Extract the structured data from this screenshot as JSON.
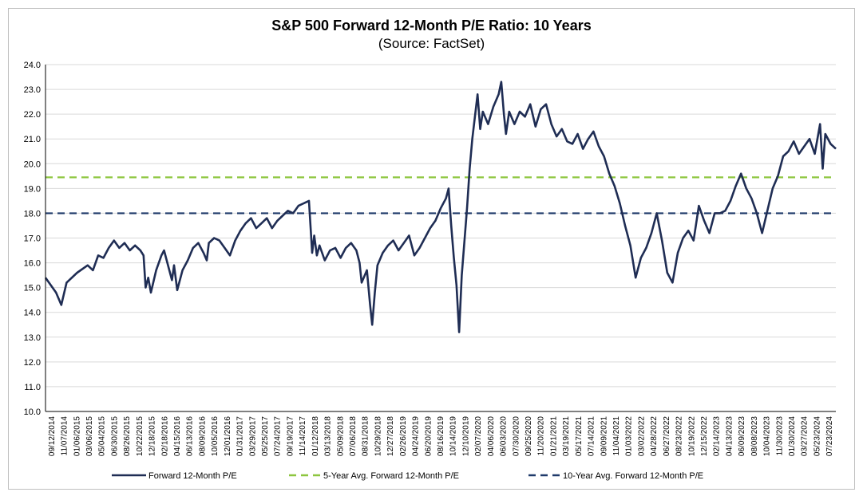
{
  "chart_data": {
    "type": "line",
    "title": "S&P 500 Forward 12-Month P/E Ratio: 10 Years",
    "subtitle": "(Source: FactSet)",
    "xlabel": "",
    "ylabel": "",
    "ylim": [
      10.0,
      24.0
    ],
    "y_ticks": [
      "10.0",
      "11.0",
      "12.0",
      "13.0",
      "14.0",
      "15.0",
      "16.0",
      "17.0",
      "18.0",
      "19.0",
      "20.0",
      "21.0",
      "22.0",
      "23.0",
      "24.0"
    ],
    "x_tick_labels": [
      "09/12/2014",
      "11/07/2014",
      "01/06/2015",
      "03/06/2015",
      "05/04/2015",
      "06/30/2015",
      "08/26/2015",
      "10/22/2015",
      "12/18/2015",
      "02/18/2016",
      "04/15/2016",
      "06/13/2016",
      "08/09/2016",
      "10/05/2016",
      "12/01/2016",
      "01/31/2017",
      "03/29/2017",
      "05/25/2017",
      "07/24/2017",
      "09/19/2017",
      "11/14/2017",
      "01/12/2018",
      "03/13/2018",
      "05/09/2018",
      "07/06/2018",
      "08/31/2018",
      "10/29/2018",
      "12/27/2018",
      "02/26/2019",
      "04/24/2019",
      "06/20/2019",
      "08/16/2019",
      "10/14/2019",
      "12/10/2019",
      "02/07/2020",
      "04/06/2020",
      "06/03/2020",
      "07/30/2020",
      "09/25/2020",
      "11/20/2020",
      "01/21/2021",
      "03/19/2021",
      "05/17/2021",
      "07/14/2021",
      "09/09/2021",
      "11/04/2021",
      "01/03/2022",
      "03/02/2022",
      "04/28/2022",
      "06/27/2022",
      "08/23/2022",
      "10/19/2022",
      "12/15/2022",
      "02/14/2023",
      "04/13/2023",
      "06/09/2023",
      "08/08/2023",
      "10/04/2023",
      "11/30/2023",
      "01/30/2024",
      "03/27/2024",
      "05/23/2024",
      "07/23/2024"
    ],
    "grid": true,
    "legend_position": "bottom",
    "series": [
      {
        "name": "Forward 12-Month P/E",
        "color": "#1f2d54",
        "points": [
          [
            0,
            15.4
          ],
          [
            2,
            14.8
          ],
          [
            3,
            14.3
          ],
          [
            4,
            15.2
          ],
          [
            6,
            15.6
          ],
          [
            8,
            15.9
          ],
          [
            9,
            15.7
          ],
          [
            10,
            16.3
          ],
          [
            11,
            16.2
          ],
          [
            12,
            16.6
          ],
          [
            13,
            16.9
          ],
          [
            14,
            16.6
          ],
          [
            15,
            16.8
          ],
          [
            16,
            16.5
          ],
          [
            17,
            16.7
          ],
          [
            18,
            16.5
          ],
          [
            18.6,
            16.3
          ],
          [
            19,
            15.0
          ],
          [
            19.5,
            15.4
          ],
          [
            20,
            14.8
          ],
          [
            21,
            15.7
          ],
          [
            22,
            16.3
          ],
          [
            22.5,
            16.5
          ],
          [
            23,
            16.1
          ],
          [
            24,
            15.3
          ],
          [
            24.4,
            15.9
          ],
          [
            25,
            14.9
          ],
          [
            26,
            15.7
          ],
          [
            27,
            16.1
          ],
          [
            28,
            16.6
          ],
          [
            29,
            16.8
          ],
          [
            30,
            16.4
          ],
          [
            30.6,
            16.1
          ],
          [
            31,
            16.8
          ],
          [
            32,
            17.0
          ],
          [
            33,
            16.9
          ],
          [
            34,
            16.6
          ],
          [
            35,
            16.3
          ],
          [
            36,
            16.9
          ],
          [
            37,
            17.3
          ],
          [
            38,
            17.6
          ],
          [
            39,
            17.8
          ],
          [
            40,
            17.4
          ],
          [
            41,
            17.6
          ],
          [
            42,
            17.8
          ],
          [
            43,
            17.4
          ],
          [
            44,
            17.7
          ],
          [
            45,
            17.9
          ],
          [
            46,
            18.1
          ],
          [
            47,
            18.0
          ],
          [
            48,
            18.3
          ],
          [
            49,
            18.4
          ],
          [
            50,
            18.5
          ],
          [
            50.6,
            16.4
          ],
          [
            51,
            17.1
          ],
          [
            51.5,
            16.3
          ],
          [
            52,
            16.7
          ],
          [
            53,
            16.1
          ],
          [
            54,
            16.5
          ],
          [
            55,
            16.6
          ],
          [
            56,
            16.2
          ],
          [
            57,
            16.6
          ],
          [
            58,
            16.8
          ],
          [
            59,
            16.5
          ],
          [
            59.6,
            16.0
          ],
          [
            60,
            15.2
          ],
          [
            61,
            15.7
          ],
          [
            61.6,
            14.3
          ],
          [
            62,
            13.5
          ],
          [
            62.5,
            14.8
          ],
          [
            63,
            15.9
          ],
          [
            64,
            16.4
          ],
          [
            65,
            16.7
          ],
          [
            66,
            16.9
          ],
          [
            67,
            16.5
          ],
          [
            68,
            16.8
          ],
          [
            69,
            17.1
          ],
          [
            70,
            16.3
          ],
          [
            71,
            16.6
          ],
          [
            72,
            17.0
          ],
          [
            73,
            17.4
          ],
          [
            74,
            17.7
          ],
          [
            75,
            18.2
          ],
          [
            76,
            18.6
          ],
          [
            76.5,
            19.0
          ],
          [
            77,
            17.5
          ],
          [
            77.5,
            16.2
          ],
          [
            78,
            15.1
          ],
          [
            78.5,
            13.2
          ],
          [
            79,
            15.5
          ],
          [
            80,
            18.2
          ],
          [
            80.5,
            19.8
          ],
          [
            81,
            21.0
          ],
          [
            82,
            22.8
          ],
          [
            82.5,
            21.4
          ],
          [
            83,
            22.1
          ],
          [
            84,
            21.6
          ],
          [
            85,
            22.3
          ],
          [
            86,
            22.8
          ],
          [
            86.5,
            23.3
          ],
          [
            87,
            22.0
          ],
          [
            87.4,
            21.2
          ],
          [
            88,
            22.1
          ],
          [
            89,
            21.6
          ],
          [
            90,
            22.1
          ],
          [
            91,
            21.9
          ],
          [
            92,
            22.4
          ],
          [
            93,
            21.5
          ],
          [
            94,
            22.2
          ],
          [
            95,
            22.4
          ],
          [
            96,
            21.6
          ],
          [
            97,
            21.1
          ],
          [
            98,
            21.4
          ],
          [
            99,
            20.9
          ],
          [
            100,
            20.8
          ],
          [
            101,
            21.2
          ],
          [
            102,
            20.6
          ],
          [
            103,
            21.0
          ],
          [
            104,
            21.3
          ],
          [
            105,
            20.7
          ],
          [
            106,
            20.3
          ],
          [
            107,
            19.6
          ],
          [
            108,
            19.1
          ],
          [
            109,
            18.4
          ],
          [
            110,
            17.5
          ],
          [
            111,
            16.7
          ],
          [
            112,
            15.4
          ],
          [
            113,
            16.2
          ],
          [
            114,
            16.6
          ],
          [
            115,
            17.2
          ],
          [
            116,
            18.0
          ],
          [
            117,
            16.9
          ],
          [
            118,
            15.6
          ],
          [
            119,
            15.2
          ],
          [
            120,
            16.4
          ],
          [
            121,
            17.0
          ],
          [
            122,
            17.3
          ],
          [
            123,
            16.9
          ],
          [
            124,
            18.3
          ],
          [
            125,
            17.7
          ],
          [
            126,
            17.2
          ],
          [
            127,
            18.0
          ],
          [
            128,
            18.0
          ],
          [
            129,
            18.1
          ],
          [
            130,
            18.5
          ],
          [
            131,
            19.1
          ],
          [
            132,
            19.6
          ],
          [
            133,
            19.0
          ],
          [
            134,
            18.6
          ],
          [
            135,
            18.0
          ],
          [
            136,
            17.2
          ],
          [
            137,
            18.1
          ],
          [
            138,
            19.0
          ],
          [
            139,
            19.5
          ],
          [
            140,
            20.3
          ],
          [
            141,
            20.5
          ],
          [
            142,
            20.9
          ],
          [
            143,
            20.4
          ],
          [
            144,
            20.7
          ],
          [
            145,
            21.0
          ],
          [
            146,
            20.4
          ],
          [
            147,
            21.6
          ],
          [
            147.5,
            19.8
          ],
          [
            148,
            21.2
          ],
          [
            149,
            20.8
          ],
          [
            150,
            20.6
          ]
        ]
      },
      {
        "name": "5-Year Avg. Forward 12-Month P/E",
        "color": "#8dc63f",
        "value": 19.45
      },
      {
        "name": "10-Year Avg. Forward 12-Month P/E",
        "color": "#1f3a6a",
        "value": 18.0
      }
    ]
  }
}
